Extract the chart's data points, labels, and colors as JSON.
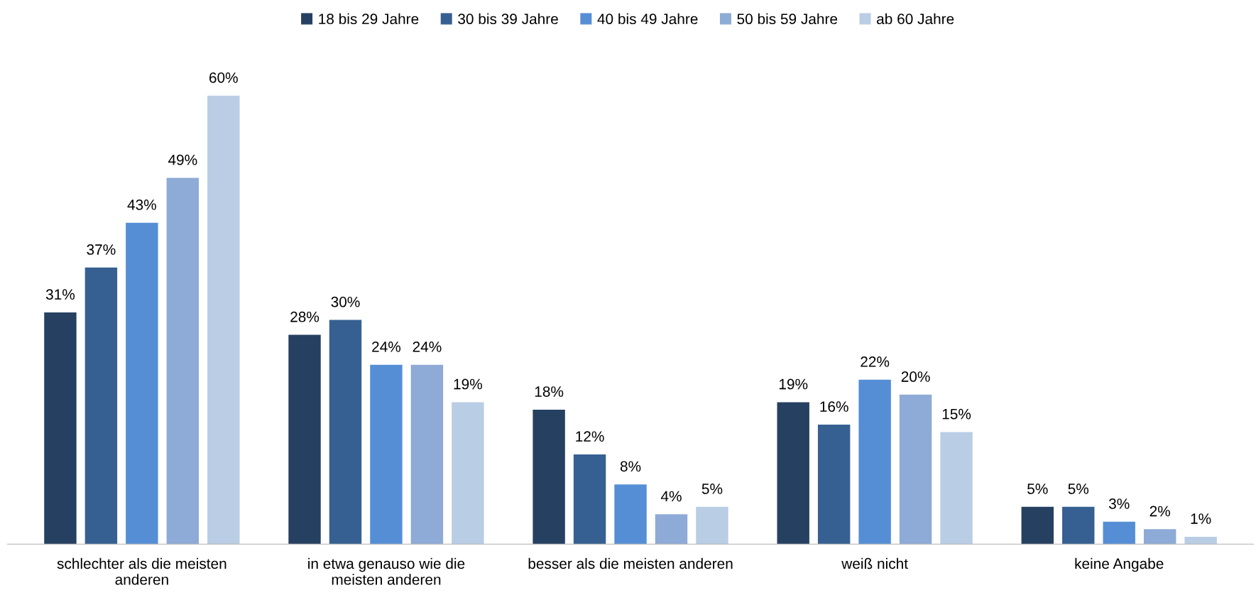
{
  "chart_data": {
    "type": "bar",
    "categories": [
      "schlechter als die meisten\nanderen",
      "in etwa genauso wie die\nmeisten anderen",
      "besser als die meisten anderen",
      "weiß nicht",
      "keine Angabe"
    ],
    "series": [
      {
        "name": "18 bis 29 Jahre",
        "color": "#264061",
        "values": [
          31,
          28,
          18,
          19,
          5
        ],
        "value_labels": [
          "31%",
          "28%",
          "18%",
          "19%",
          "5%"
        ]
      },
      {
        "name": "30 bis 39 Jahre",
        "color": "#376092",
        "values": [
          37,
          30,
          12,
          16,
          5
        ],
        "value_labels": [
          "37%",
          "30%",
          "12%",
          "16%",
          "5%"
        ]
      },
      {
        "name": "40 bis 49 Jahre",
        "color": "#558ed5",
        "values": [
          43,
          24,
          8,
          22,
          3
        ],
        "value_labels": [
          "43%",
          "24%",
          "8%",
          "22%",
          "3%"
        ]
      },
      {
        "name": "50 bis 59 Jahre",
        "color": "#8eaad6",
        "values": [
          49,
          24,
          4,
          20,
          2
        ],
        "value_labels": [
          "49%",
          "24%",
          "4%",
          "20%",
          "2%"
        ]
      },
      {
        "name": "ab 60 Jahre",
        "color": "#b9cde5",
        "values": [
          60,
          19,
          5,
          15,
          1
        ],
        "value_labels": [
          "60%",
          "19%",
          "5%",
          "15%",
          "1%"
        ]
      }
    ],
    "legend": "top",
    "grid": false
  }
}
